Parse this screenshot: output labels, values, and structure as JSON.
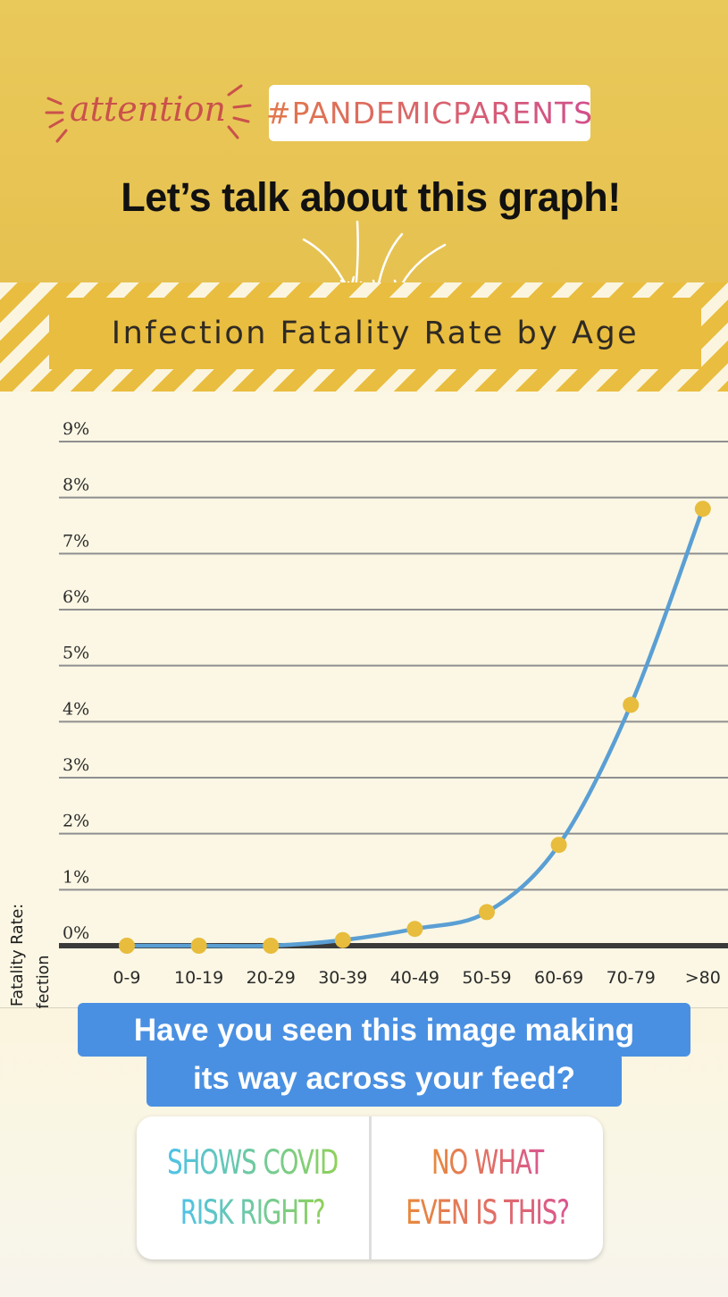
{
  "header": {
    "attention_word": "attention",
    "hashtag": "#PANDEMICPARENTS",
    "headline": "Let’s talk about this graph!"
  },
  "colors": {
    "background_yellow": "#e8c655",
    "stripe_yellow": "#e9bd3f",
    "line_blue": "#5a9fd4",
    "point_gold": "#e8bc3c",
    "question_blue": "#4a90e2"
  },
  "chart_data": {
    "type": "line",
    "title": "Infection Fatality Rate by Age",
    "ylabel_line1": "Infection Fatality Rate:",
    "ylabel_line2": "Predicted Chance of Death Per Infection",
    "xlabel": "",
    "categories": [
      "0-9",
      "10-19",
      "20-29",
      "30-39",
      "40-49",
      "50-59",
      "60-69",
      "70-79",
      ">80"
    ],
    "values": [
      0.0,
      0.0,
      0.0,
      0.1,
      0.3,
      0.6,
      1.8,
      4.3,
      7.8
    ],
    "ytick_labels": [
      "0%",
      "1%",
      "2%",
      "3%",
      "4%",
      "5%",
      "6%",
      "7%",
      "8%",
      "9%"
    ],
    "ylim": [
      0,
      9
    ],
    "grid": true
  },
  "question": {
    "line1": "Have you seen this image making",
    "line2": "its way across your feed?"
  },
  "poll": {
    "option1_line1": "SHOWS COVID",
    "option1_line2": "RISK RIGHT?",
    "option2_line1": "NO WHAT",
    "option2_line2": "EVEN IS THIS?"
  }
}
